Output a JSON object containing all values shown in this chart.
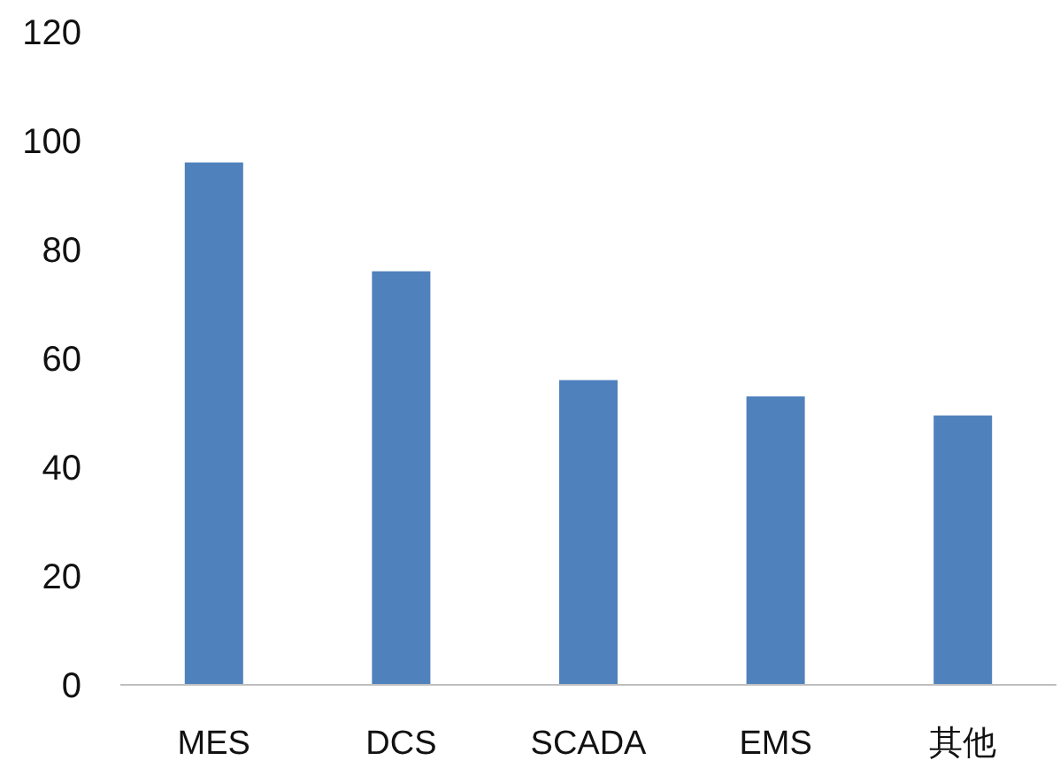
{
  "chart_data": {
    "type": "bar",
    "categories": [
      "MES",
      "DCS",
      "SCADA",
      "EMS",
      "其他"
    ],
    "values": [
      96,
      76,
      56,
      53,
      49.5
    ],
    "color": "#4f81bd",
    "ylim": [
      0,
      120
    ],
    "yticks": [
      0,
      20,
      40,
      60,
      80,
      100,
      120
    ]
  }
}
